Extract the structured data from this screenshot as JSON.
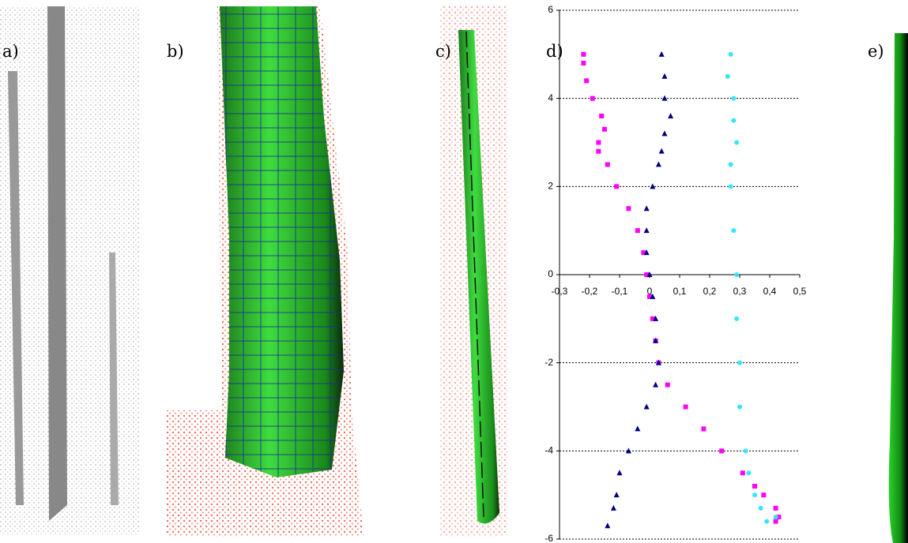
{
  "panel_labels": [
    "a)",
    "b)",
    "c)",
    "d)",
    "e)"
  ],
  "chart_data": {
    "type": "scatter",
    "xlim": [
      -0.3,
      0.5
    ],
    "xticks": [
      {
        "value": -0.3,
        "label": "-0,3"
      },
      {
        "value": -0.2,
        "label": "-0,2"
      },
      {
        "value": -0.1,
        "label": "-0,1"
      },
      0,
      {
        "value": 0.1,
        "label": "0,1"
      },
      {
        "value": 0.2,
        "label": "0,2"
      },
      {
        "value": 0.3,
        "label": "0,3"
      },
      {
        "value": 0.4,
        "label": "0,4"
      },
      {
        "value": 0.5,
        "label": "0,5"
      }
    ],
    "ylim": [
      -6,
      6
    ],
    "yticks": [
      -6,
      -4,
      -2,
      0,
      2,
      4,
      6
    ],
    "grid": true,
    "series": [
      {
        "color": "#ff00ff",
        "marker": "square",
        "x": [
          -0.22,
          -0.22,
          -0.21,
          -0.19,
          -0.16,
          -0.15,
          -0.17,
          -0.17,
          -0.14,
          -0.11,
          -0.07,
          -0.04,
          -0.02,
          -0.01,
          0.0,
          0.01,
          0.02,
          0.03,
          0.06,
          0.12,
          0.18,
          0.24,
          0.31,
          0.35,
          0.38,
          0.42,
          0.43,
          0.42
        ],
        "values": [
          5,
          4.8,
          4.4,
          4.0,
          3.6,
          3.3,
          3.0,
          2.8,
          2.5,
          2,
          1.5,
          1,
          0.5,
          0,
          -0.5,
          -1,
          -1.5,
          -2,
          -2.5,
          -3,
          -3.5,
          -4,
          -4.5,
          -4.8,
          -5.0,
          -5.3,
          -5.5,
          -5.6
        ]
      },
      {
        "color": "#000080",
        "marker": "triangle",
        "x": [
          0.04,
          0.05,
          0.05,
          0.07,
          0.05,
          0.04,
          0.03,
          0.01,
          -0.01,
          -0.01,
          -0.01,
          0.0,
          0.01,
          0.02,
          0.02,
          0.03,
          0.02,
          -0.01,
          -0.04,
          -0.07,
          -0.1,
          -0.11,
          -0.12,
          -0.14
        ],
        "values": [
          5,
          4.5,
          4.0,
          3.6,
          3.2,
          2.8,
          2.5,
          2,
          1.5,
          1,
          0.5,
          0,
          -0.5,
          -1,
          -1.5,
          -2,
          -2.5,
          -3,
          -3.5,
          -4,
          -4.5,
          -5,
          -5.3,
          -5.7
        ]
      },
      {
        "color": "#33e6ff",
        "marker": "circle",
        "x": [
          0.27,
          0.26,
          0.28,
          0.28,
          0.29,
          0.27,
          0.27,
          0.28,
          0.29,
          0.29,
          0.3,
          0.3,
          0.32,
          0.33,
          0.35,
          0.37,
          0.39,
          0.42
        ],
        "values": [
          5,
          4.5,
          4,
          3.5,
          3,
          2.5,
          2,
          1,
          0,
          -1,
          -2,
          -3,
          -4,
          -4.5,
          -5,
          -5.3,
          -5.6,
          -5.5
        ]
      }
    ]
  }
}
